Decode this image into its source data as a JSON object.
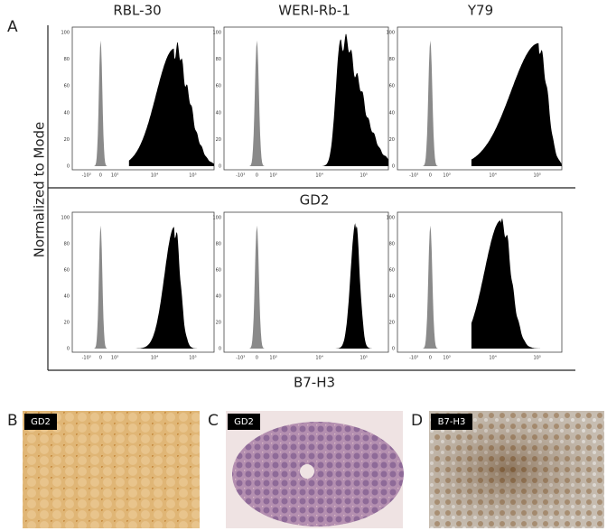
{
  "panel_a": {
    "label": "A",
    "column_titles": [
      "RBL-30",
      "WERI-Rb-1",
      "Y79"
    ],
    "y_axis_label": "Normalized to Mode",
    "y_ticks": [
      "0",
      "20",
      "40",
      "60",
      "80",
      "100"
    ],
    "x_ticks": [
      "-10³",
      "0",
      "10³",
      "10⁴",
      "10⁵"
    ],
    "rows": [
      "GD2",
      "B7-H3"
    ]
  },
  "panels": [
    {
      "label": "B",
      "stain": "GD2"
    },
    {
      "label": "C",
      "stain": "GD2"
    },
    {
      "label": "D",
      "stain": "B7-H3"
    }
  ]
}
